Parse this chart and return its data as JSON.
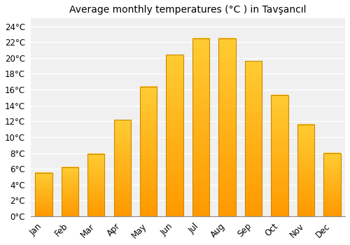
{
  "title": "Average monthly temperatures (°C ) in Tavşancıl",
  "months": [
    "Jan",
    "Feb",
    "Mar",
    "Apr",
    "May",
    "Jun",
    "Jul",
    "Aug",
    "Sep",
    "Oct",
    "Nov",
    "Dec"
  ],
  "values": [
    5.5,
    6.2,
    7.9,
    12.2,
    16.4,
    20.4,
    22.5,
    22.5,
    19.6,
    15.3,
    11.6,
    8.0
  ],
  "bar_color_top": "#FFB300",
  "bar_color_bottom": "#FFA000",
  "bar_color_face": "#FFC125",
  "bar_edge_color": "#CC8800",
  "background_color": "#FFFFFF",
  "plot_bg_color": "#F0F0F0",
  "grid_color": "#FFFFFF",
  "ylim": [
    0,
    25
  ],
  "yticks": [
    0,
    2,
    4,
    6,
    8,
    10,
    12,
    14,
    16,
    18,
    20,
    22,
    24
  ],
  "title_fontsize": 10,
  "tick_fontsize": 8.5
}
